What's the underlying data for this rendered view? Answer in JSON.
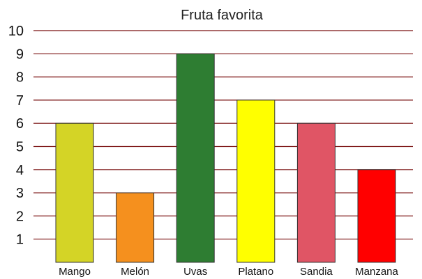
{
  "chart_data": {
    "type": "bar",
    "title": "Fruta favorita",
    "xlabel": "",
    "ylabel": "",
    "categories": [
      "Mango",
      "Melón",
      "Uvas",
      "Platano",
      "Sandia",
      "Manzana"
    ],
    "values": [
      6,
      3,
      9,
      7,
      6,
      4
    ],
    "bar_colors": [
      "#d4d426",
      "#f5901e",
      "#2e7d32",
      "#ffff00",
      "#e05565",
      "#ff0000"
    ],
    "ylim": [
      0,
      10
    ],
    "yticks": [
      1,
      2,
      3,
      4,
      5,
      6,
      7,
      8,
      9,
      10
    ],
    "grid": true,
    "grid_color": "#7a1010",
    "legend": "none"
  }
}
